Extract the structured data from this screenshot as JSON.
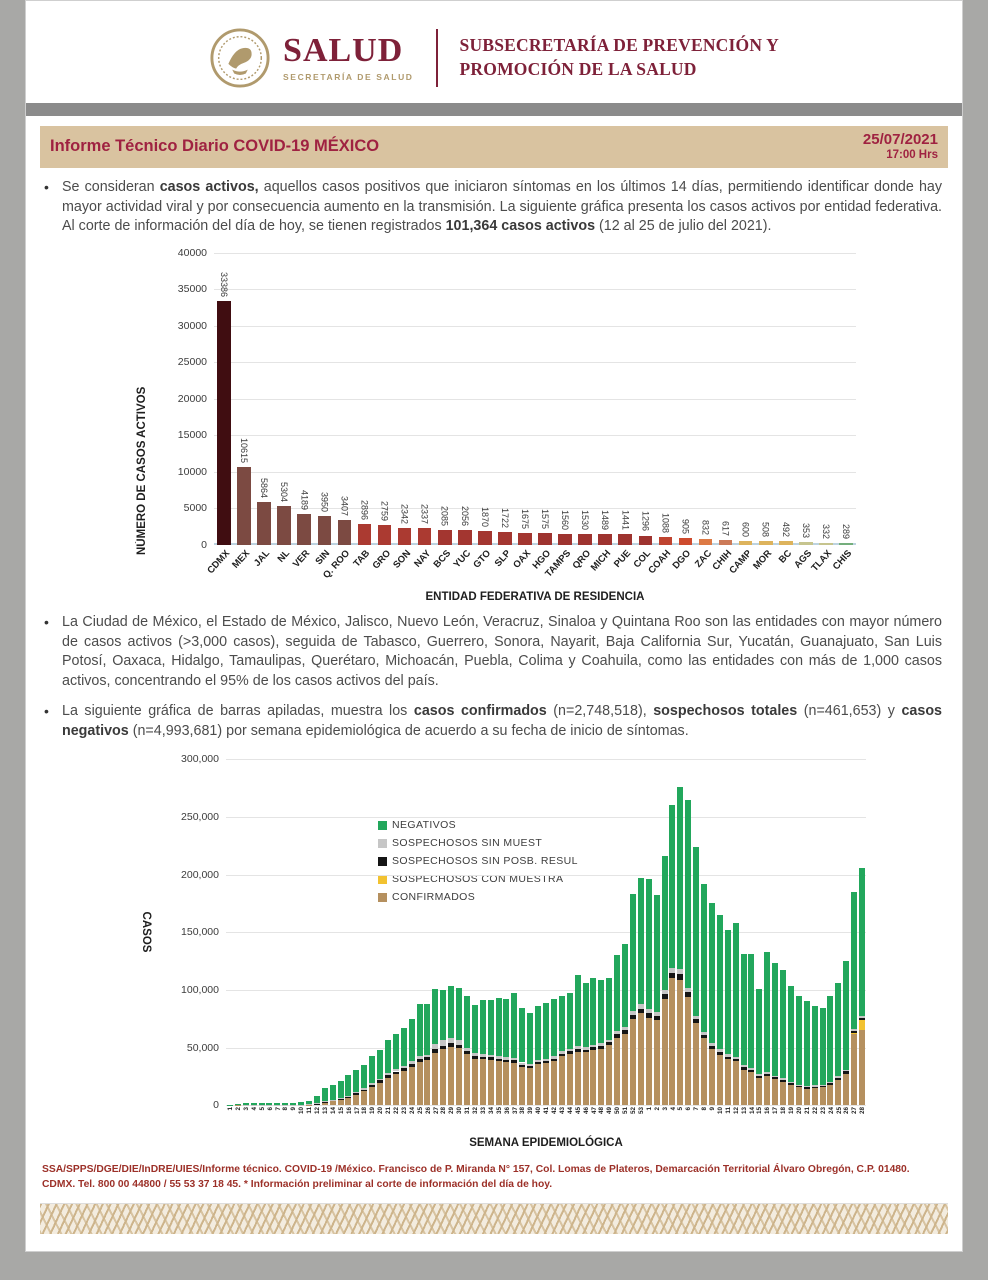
{
  "header": {
    "brand": "SALUD",
    "brand_sub": "SECRETARÍA DE SALUD",
    "org_line1": "SUBSECRETARÍA DE PREVENCIÓN Y",
    "org_line2": "PROMOCIÓN DE LA SALUD",
    "emblem_icon": "eagle-seal"
  },
  "title_bar": {
    "title": "Informe Técnico Diario COVID-19 MÉXICO",
    "date": "25/07/2021",
    "time": "17:00 Hrs"
  },
  "bullets": {
    "b1": [
      {
        "t": "Se consideran ",
        "b": false
      },
      {
        "t": "casos activos,",
        "b": true
      },
      {
        "t": " aquellos casos positivos que iniciaron síntomas en los últimos 14 días, permitiendo identificar donde hay mayor actividad viral y por consecuencia aumento en la transmisión. La siguiente gráfica presenta los casos activos por entidad federativa. Al corte de información del día de hoy, se tienen registrados ",
        "b": false
      },
      {
        "t": "101,364 casos activos",
        "b": true
      },
      {
        "t": " (12 al 25 de julio del 2021).",
        "b": false
      }
    ],
    "b2": [
      {
        "t": "La Ciudad de México, el Estado de México, Jalisco, Nuevo León, Veracruz, Sinaloa y Quintana Roo son las entidades con mayor número de casos activos (>3,000 casos), seguida de Tabasco, Guerrero, Sonora, Nayarit, Baja California Sur, Yucatán, Guanajuato, San Luis Potosí, Oaxaca, Hidalgo, Tamaulipas, Querétaro, Michoacán, Puebla, Colima y Coahuila, como las entidades con más de 1,000 casos activos, concentrando el 95% de los casos activos del país.",
        "b": false
      }
    ],
    "b3": [
      {
        "t": "La siguiente gráfica de barras apiladas, muestra los ",
        "b": false
      },
      {
        "t": "casos confirmados",
        "b": true
      },
      {
        "t": " (n=2,748,518), ",
        "b": false
      },
      {
        "t": "sospechosos totales",
        "b": true
      },
      {
        "t": " (n=461,653) y ",
        "b": false
      },
      {
        "t": "casos negativos",
        "b": true
      },
      {
        "t": " (n=4,993,681) por semana epidemiológica de acuerdo a su fecha de inicio de síntomas.",
        "b": false
      }
    ]
  },
  "footer": {
    "line": "SSA/SPPS/DGE/DIE/InDRE/UIES/Informe técnico. COVID-19 /México. Francisco de P. Miranda N° 157, Col. Lomas de Plateros, Demarcación Territorial Álvaro Obregón, C.P. 01480. CDMX. Tel. 800 00 44800 / 55 53 37 18 45. * Información preliminar al corte de información del día de hoy."
  },
  "colors": {
    "maroon": "#7e2139",
    "title_accent": "#9f2241",
    "title_bar_bg": "#d9c3a0",
    "gold": "#b09a6d",
    "gray_bar": "#8b8b8b"
  },
  "chart_data": [
    {
      "type": "bar",
      "ylabel": "NÚMERO DE CASOS ACTIVOS",
      "xlabel": "ENTIDAD FEDERATIVA DE RESIDENCIA",
      "ylim": [
        0,
        40000
      ],
      "ytick_step": 5000,
      "ytick_format": "plain",
      "grid": true,
      "categories": [
        "CDMX",
        "MEX",
        "JAL",
        "NL",
        "VER",
        "SIN",
        "Q. ROO",
        "TAB",
        "GRO",
        "SON",
        "NAY",
        "BCS",
        "YUC",
        "GTO",
        "SLP",
        "OAX",
        "HGO",
        "TAMPS",
        "QRO",
        "MICH",
        "PUE",
        "COL",
        "COAH",
        "DGO",
        "ZAC",
        "CHIH",
        "CAMP",
        "MOR",
        "BC",
        "AGS",
        "TLAX",
        "CHIS"
      ],
      "values": [
        33386,
        10615,
        5864,
        5304,
        4189,
        3950,
        3407,
        2896,
        2759,
        2342,
        2337,
        2085,
        2056,
        1870,
        1722,
        1675,
        1575,
        1560,
        1530,
        1489,
        1441,
        1296,
        1088,
        905,
        832,
        617,
        600,
        508,
        492,
        353,
        332,
        289
      ],
      "bar_colors": [
        "#400d11",
        "#7c4a42",
        "#7c4a42",
        "#7c4a42",
        "#7c4a42",
        "#7c4a42",
        "#7c4a42",
        "#ab3a31",
        "#ab3a31",
        "#ab3a31",
        "#ab3a31",
        "#a33630",
        "#a33630",
        "#a33630",
        "#a33630",
        "#a33630",
        "#9e332f",
        "#9e332f",
        "#9e332f",
        "#9e332f",
        "#9e332f",
        "#9e332f",
        "#bf4430",
        "#ce4b2e",
        "#dd7a45",
        "#cc7a58",
        "#ddb35c",
        "#ddb35c",
        "#ddb35c",
        "#c6c48e",
        "#c6c48e",
        "#74ae7c"
      ]
    },
    {
      "type": "stacked-bar",
      "ylabel": "CASOS",
      "xlabel": "SEMANA EPIDEMIOLÓGICA",
      "ylim": [
        0,
        300000
      ],
      "ytick_step": 50000,
      "ytick_format": "comma",
      "grid": true,
      "legend_position": "upper-left-inside",
      "legend_order": [
        "NEGATIVOS",
        "SOSPECHOSOS SIN MUEST",
        "SOSPECHOSOS SIN POSB. RESUL",
        "SOSPECHOSOS CON MUESTRA",
        "CONFIRMADOS"
      ],
      "x": [
        "1",
        "2",
        "3",
        "4",
        "5",
        "6",
        "7",
        "8",
        "9",
        "10",
        "11",
        "12",
        "13",
        "14",
        "15",
        "16",
        "17",
        "18",
        "19",
        "20",
        "21",
        "22",
        "23",
        "24",
        "25",
        "26",
        "27",
        "28",
        "29",
        "30",
        "31",
        "32",
        "33",
        "34",
        "35",
        "36",
        "37",
        "38",
        "39",
        "40",
        "41",
        "42",
        "43",
        "44",
        "45",
        "46",
        "47",
        "48",
        "49",
        "50",
        "51",
        "52",
        "53",
        "1",
        "2",
        "3",
        "4",
        "5",
        "6",
        "7",
        "8",
        "9",
        "10",
        "11",
        "12",
        "13",
        "14",
        "15",
        "16",
        "17",
        "18",
        "19",
        "20",
        "21",
        "22",
        "23",
        "24",
        "25",
        "26",
        "27",
        "28"
      ],
      "series": [
        {
          "name": "CONFIRMADOS",
          "color": "#b5905f",
          "values": [
            50,
            100,
            150,
            150,
            150,
            150,
            150,
            200,
            200,
            300,
            600,
            1200,
            2600,
            3600,
            4600,
            6200,
            9000,
            12000,
            16000,
            19500,
            24000,
            27000,
            29500,
            33500,
            37500,
            39000,
            45500,
            48500,
            50500,
            49500,
            44500,
            40500,
            40000,
            39500,
            38500,
            37500,
            37000,
            33500,
            32500,
            35500,
            36500,
            38500,
            42500,
            44500,
            46500,
            46000,
            48000,
            49000,
            52000,
            58500,
            62000,
            75000,
            80000,
            76000,
            74000,
            92000,
            110000,
            109000,
            94000,
            71000,
            58000,
            49000,
            44000,
            40000,
            38000,
            31000,
            28500,
            24000,
            25500,
            22500,
            20500,
            17500,
            15500,
            14500,
            15000,
            15500,
            17500,
            22000,
            27500,
            62000,
            65000
          ]
        },
        {
          "name": "SOSPECHOSOS CON MUESTRA",
          "color": "#f2c230",
          "values": [
            0,
            0,
            0,
            0,
            0,
            0,
            0,
            0,
            0,
            0,
            0,
            0,
            0,
            0,
            0,
            0,
            0,
            0,
            0,
            0,
            0,
            0,
            0,
            0,
            0,
            0,
            0,
            0,
            0,
            0,
            0,
            0,
            0,
            0,
            0,
            0,
            0,
            0,
            0,
            0,
            0,
            0,
            0,
            0,
            0,
            0,
            0,
            0,
            0,
            0,
            0,
            0,
            0,
            0,
            0,
            0,
            0,
            0,
            0,
            0,
            0,
            0,
            0,
            0,
            0,
            0,
            0,
            0,
            0,
            0,
            0,
            0,
            0,
            0,
            0,
            0,
            0,
            0,
            0,
            500,
            9000
          ]
        },
        {
          "name": "SOSPECHOSOS SIN POSB. RESUL",
          "color": "#151515",
          "values": [
            0,
            50,
            50,
            50,
            50,
            50,
            50,
            50,
            50,
            100,
            100,
            300,
            500,
            600,
            700,
            800,
            1500,
            1600,
            1800,
            2000,
            2200,
            2300,
            2400,
            2500,
            2600,
            2600,
            3500,
            3300,
            3200,
            3000,
            2500,
            2200,
            2200,
            2100,
            2000,
            2000,
            1900,
            1800,
            1700,
            1800,
            1900,
            2000,
            2100,
            2200,
            2300,
            2300,
            2400,
            2400,
            2600,
            2900,
            3100,
            3600,
            3800,
            3700,
            3600,
            4200,
            4800,
            4800,
            4200,
            3400,
            2900,
            2600,
            2400,
            2200,
            2100,
            1900,
            1800,
            1600,
            1700,
            1600,
            1500,
            1400,
            1300,
            1200,
            1200,
            1300,
            1400,
            1600,
            1900,
            2200,
            1500
          ]
        },
        {
          "name": "SOSPECHOSOS SIN MUEST",
          "color": "#c6c6c6",
          "values": [
            0,
            50,
            100,
            100,
            100,
            100,
            100,
            100,
            100,
            100,
            200,
            300,
            500,
            600,
            700,
            800,
            1000,
            1200,
            1400,
            1500,
            1800,
            2000,
            2100,
            2200,
            2400,
            2400,
            4500,
            4500,
            4300,
            4000,
            3000,
            2500,
            2400,
            2300,
            2200,
            2100,
            2000,
            1800,
            1700,
            1800,
            1900,
            2000,
            2100,
            2100,
            2200,
            2200,
            2300,
            2300,
            2400,
            2700,
            2900,
            3400,
            3600,
            3500,
            3400,
            3800,
            4200,
            4200,
            3800,
            3200,
            2800,
            2500,
            2300,
            2100,
            2000,
            1800,
            1700,
            1500,
            1600,
            1500,
            1400,
            1300,
            1200,
            1100,
            1100,
            1100,
            1200,
            1400,
            1600,
            1800,
            1500
          ]
        },
        {
          "name": "NEGATIVOS",
          "color": "#22a75c",
          "values": [
            300,
            1300,
            1700,
            1700,
            1700,
            1700,
            1700,
            1650,
            1650,
            2000,
            2600,
            6200,
            11400,
            13200,
            15000,
            18200,
            19500,
            20200,
            23800,
            25000,
            29000,
            30700,
            33000,
            36800,
            45500,
            44000,
            47500,
            43700,
            45000,
            45500,
            45000,
            41800,
            46400,
            47100,
            50300,
            50400,
            56100,
            46900,
            44100,
            46900,
            48700,
            49500,
            48300,
            48200,
            62000,
            55500,
            57300,
            55300,
            53000,
            65900,
            72000,
            101000,
            109600,
            112800,
            101000,
            116000,
            141000,
            158000,
            163000,
            146400,
            128300,
            120900,
            116300,
            107700,
            115900,
            96300,
            99000,
            73900,
            104200,
            97400,
            93600,
            82800,
            77000,
            73200,
            68700,
            66100,
            74900,
            81000,
            94000,
            118500,
            129000
          ]
        }
      ]
    }
  ]
}
